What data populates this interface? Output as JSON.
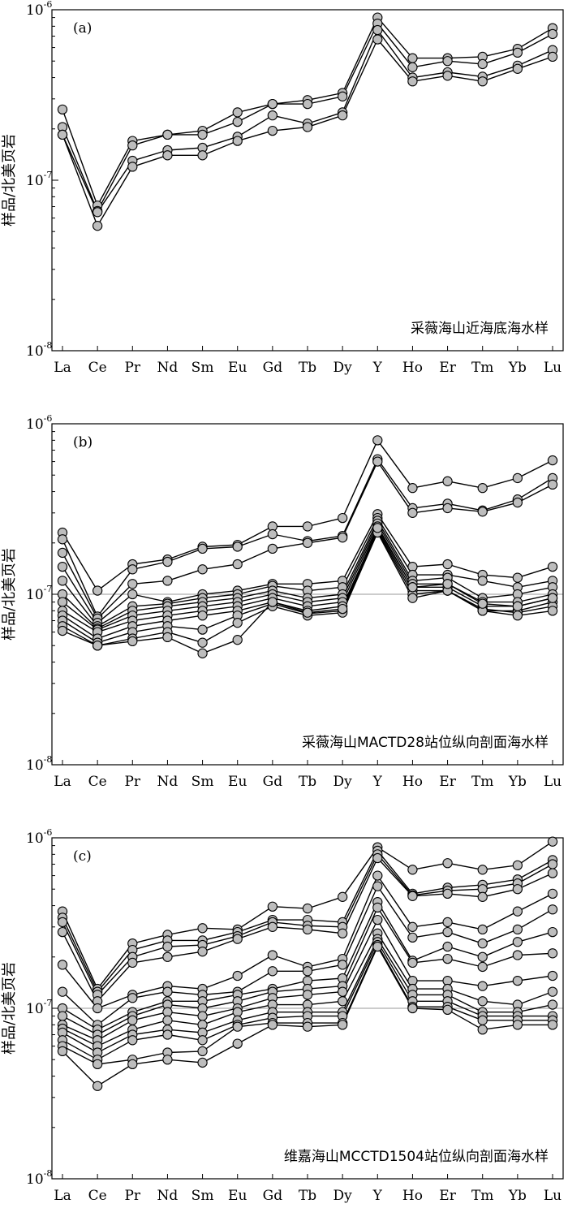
{
  "chart_data": [
    {
      "type": "line",
      "panel_label": "(a)",
      "caption": "采薇海山近海底海水样",
      "ylabel": "样品/北美页岩",
      "yscale": "log",
      "ylim": [
        1e-08,
        1e-06
      ],
      "yticks": [
        {
          "base": "10",
          "exp": "-8",
          "value": 1e-08
        },
        {
          "base": "10",
          "exp": "-7",
          "value": 1e-07
        },
        {
          "base": "10",
          "exp": "-6",
          "value": 1e-06
        }
      ],
      "reference_line": null,
      "categories": [
        "La",
        "Ce",
        "Pr",
        "Nd",
        "Sm",
        "Eu",
        "Gd",
        "Tb",
        "Dy",
        "Y",
        "Ho",
        "Er",
        "Tm",
        "Yb",
        "Lu"
      ],
      "series": [
        {
          "values": [
            2.6e-07,
            7.1e-08,
            1.7e-07,
            1.85e-07,
            1.95e-07,
            2.5e-07,
            2.8e-07,
            2.95e-07,
            3.25e-07,
            9e-07,
            5.2e-07,
            5.2e-07,
            5.3e-07,
            5.9e-07,
            7.8e-07
          ]
        },
        {
          "values": [
            2.05e-07,
            6.6e-08,
            1.6e-07,
            1.85e-07,
            1.85e-07,
            2.2e-07,
            2.8e-07,
            2.8e-07,
            3.1e-07,
            8.3e-07,
            4.6e-07,
            5e-07,
            4.8e-07,
            5.6e-07,
            7.2e-07
          ]
        },
        {
          "values": [
            1.85e-07,
            6.5e-08,
            1.3e-07,
            1.5e-07,
            1.55e-07,
            1.8e-07,
            2.4e-07,
            2.15e-07,
            2.5e-07,
            7.6e-07,
            4e-07,
            4.3e-07,
            4.05e-07,
            4.7e-07,
            5.8e-07
          ]
        },
        {
          "values": [
            1.85e-07,
            5.4e-08,
            1.2e-07,
            1.4e-07,
            1.4e-07,
            1.7e-07,
            1.95e-07,
            2.05e-07,
            2.4e-07,
            6.7e-07,
            3.8e-07,
            4.1e-07,
            3.8e-07,
            4.5e-07,
            5.3e-07
          ]
        }
      ]
    },
    {
      "type": "line",
      "panel_label": "(b)",
      "caption": "采薇海山MACTD28站位纵向剖面海水样",
      "ylabel": "样品/北美页岩",
      "yscale": "log",
      "ylim": [
        1e-08,
        1e-06
      ],
      "yticks": [
        {
          "base": "10",
          "exp": "-8",
          "value": 1e-08
        },
        {
          "base": "10",
          "exp": "-7",
          "value": 1e-07
        },
        {
          "base": "10",
          "exp": "-6",
          "value": 1e-06
        }
      ],
      "reference_line": 1e-07,
      "categories": [
        "La",
        "Ce",
        "Pr",
        "Nd",
        "Sm",
        "Eu",
        "Gd",
        "Tb",
        "Dy",
        "Y",
        "Ho",
        "Er",
        "Tm",
        "Yb",
        "Lu"
      ],
      "series": [
        {
          "values": [
            2.3e-07,
            1.05e-07,
            1.5e-07,
            1.6e-07,
            1.9e-07,
            1.95e-07,
            2.5e-07,
            2.5e-07,
            2.8e-07,
            8e-07,
            4.2e-07,
            4.6e-07,
            4.2e-07,
            4.8e-07,
            6.1e-07
          ]
        },
        {
          "values": [
            2.1e-07,
            7.4e-08,
            1.4e-07,
            1.55e-07,
            1.85e-07,
            1.9e-07,
            2.25e-07,
            2.05e-07,
            2.2e-07,
            6.2e-07,
            3.2e-07,
            3.4e-07,
            3.1e-07,
            3.6e-07,
            4.8e-07
          ]
        },
        {
          "values": [
            1.75e-07,
            7.2e-08,
            1.15e-07,
            1.2e-07,
            1.4e-07,
            1.5e-07,
            1.85e-07,
            2e-07,
            2.15e-07,
            6e-07,
            3e-07,
            3.2e-07,
            3.05e-07,
            3.45e-07,
            4.4e-07
          ]
        },
        {
          "values": [
            1.45e-07,
            6.8e-08,
            1e-07,
            9e-08,
            1e-07,
            1.05e-07,
            1.15e-07,
            1.15e-07,
            1.2e-07,
            2.95e-07,
            1.45e-07,
            1.5e-07,
            1.3e-07,
            1.25e-07,
            1.45e-07
          ]
        },
        {
          "values": [
            1.2e-07,
            6.5e-08,
            8.5e-08,
            8.8e-08,
            9.5e-08,
            1e-07,
            1.12e-07,
            1.05e-07,
            1.1e-07,
            2.8e-07,
            1.3e-07,
            1.3e-07,
            1.2e-07,
            1.1e-07,
            1.2e-07
          ]
        },
        {
          "values": [
            1e-07,
            6.3e-08,
            8e-08,
            8.5e-08,
            9e-08,
            9.5e-08,
            1.05e-07,
            9.5e-08,
            1e-07,
            2.7e-07,
            1.2e-07,
            1.25e-07,
            9.5e-08,
            1e-07,
            1.1e-07
          ]
        },
        {
          "values": [
            9e-08,
            6.2e-08,
            7.5e-08,
            8e-08,
            8.5e-08,
            9e-08,
            1e-07,
            9e-08,
            9.5e-08,
            2.6e-07,
            1.15e-07,
            1.15e-07,
            9e-08,
            9e-08,
            1e-07
          ]
        },
        {
          "values": [
            8e-08,
            6e-08,
            7e-08,
            7.5e-08,
            8e-08,
            8.5e-08,
            9.5e-08,
            8.5e-08,
            9e-08,
            2.5e-07,
            1.1e-07,
            1.1e-07,
            8.5e-08,
            8.5e-08,
            9.5e-08
          ]
        },
        {
          "values": [
            7.5e-08,
            5.5e-08,
            6.5e-08,
            7e-08,
            7.5e-08,
            8e-08,
            9e-08,
            8e-08,
            8.5e-08,
            2.4e-07,
            1.05e-07,
            1.05e-07,
            8e-08,
            8e-08,
            9e-08
          ]
        },
        {
          "values": [
            7e-08,
            5.2e-08,
            6e-08,
            6.5e-08,
            6.2e-08,
            7.5e-08,
            8.8e-08,
            7.7e-08,
            8e-08,
            2.35e-07,
            1e-07,
            1.05e-07,
            8.2e-08,
            7.8e-08,
            8.5e-08
          ]
        },
        {
          "values": [
            6.5e-08,
            5e-08,
            5.5e-08,
            6e-08,
            5.2e-08,
            6.8e-08,
            8.5e-08,
            7.5e-08,
            7.8e-08,
            2.3e-07,
            9.5e-08,
            1.05e-07,
            8e-08,
            7.5e-08,
            8e-08
          ]
        },
        {
          "values": [
            6.1e-08,
            5e-08,
            5.3e-08,
            5.6e-08,
            4.5e-08,
            5.4e-08,
            9e-08,
            7.8e-08,
            8.2e-08,
            2.45e-07,
            1.1e-07,
            1.15e-07,
            8.8e-08,
            8.5e-08,
            9.5e-08
          ]
        }
      ]
    },
    {
      "type": "line",
      "panel_label": "(c)",
      "caption": "维嘉海山MCCTD1504站位纵向剖面海水样",
      "ylabel": "样品/北美页岩",
      "yscale": "log",
      "ylim": [
        1e-08,
        1e-06
      ],
      "yticks": [
        {
          "base": "10",
          "exp": "-8",
          "value": 1e-08
        },
        {
          "base": "10",
          "exp": "-7",
          "value": 1e-07
        },
        {
          "base": "10",
          "exp": "-6",
          "value": 1e-06
        }
      ],
      "reference_line": 1e-07,
      "categories": [
        "La",
        "Ce",
        "Pr",
        "Nd",
        "Sm",
        "Eu",
        "Gd",
        "Tb",
        "Dy",
        "Y",
        "Ho",
        "Er",
        "Tm",
        "Yb",
        "Lu"
      ],
      "series": [
        {
          "values": [
            3.7e-07,
            1.3e-07,
            2.4e-07,
            2.7e-07,
            2.95e-07,
            2.9e-07,
            3.95e-07,
            3.85e-07,
            4.5e-07,
            8.8e-07,
            6.5e-07,
            7.1e-07,
            6.5e-07,
            6.9e-07,
            9.5e-07
          ]
        },
        {
          "values": [
            3.4e-07,
            1.25e-07,
            2.2e-07,
            2.5e-07,
            2.5e-07,
            2.8e-07,
            3.3e-07,
            3.3e-07,
            3.2e-07,
            8.4e-07,
            4.7e-07,
            5.1e-07,
            5.3e-07,
            5.7e-07,
            7.4e-07
          ]
        },
        {
          "values": [
            3.2e-07,
            1.2e-07,
            2e-07,
            2.3e-07,
            2.35e-07,
            2.65e-07,
            3.2e-07,
            3.05e-07,
            3e-07,
            8e-07,
            4.6e-07,
            4.9e-07,
            5e-07,
            5.4e-07,
            7e-07
          ]
        },
        {
          "values": [
            2.8e-07,
            1.1e-07,
            1.85e-07,
            2e-07,
            2.15e-07,
            2.55e-07,
            3e-07,
            2.9e-07,
            2.75e-07,
            7.6e-07,
            4.55e-07,
            4.7e-07,
            4.5e-07,
            5e-07,
            6.2e-07
          ]
        },
        {
          "values": [
            1.8e-07,
            1e-07,
            1.2e-07,
            1.35e-07,
            1.3e-07,
            1.55e-07,
            2.05e-07,
            1.75e-07,
            1.95e-07,
            6e-07,
            3e-07,
            3.2e-07,
            2.9e-07,
            3.7e-07,
            4.7e-07
          ]
        },
        {
          "values": [
            1.25e-07,
            8e-08,
            1.15e-07,
            1.25e-07,
            1.2e-07,
            1.25e-07,
            1.65e-07,
            1.65e-07,
            1.8e-07,
            5.2e-07,
            2.6e-07,
            2.8e-07,
            2.4e-07,
            2.9e-07,
            3.8e-07
          ]
        },
        {
          "values": [
            1e-07,
            7.5e-08,
            9.5e-08,
            1.1e-07,
            1.1e-07,
            1.2e-07,
            1.3e-07,
            1.45e-07,
            1.5e-07,
            4.2e-07,
            1.9e-07,
            2.3e-07,
            2e-07,
            2.45e-07,
            2.8e-07
          ]
        },
        {
          "values": [
            9e-08,
            7e-08,
            9e-08,
            1.05e-07,
            1e-07,
            1.1e-07,
            1.25e-07,
            1.3e-07,
            1.35e-07,
            3.9e-07,
            1.85e-07,
            1.95e-07,
            1.75e-07,
            2.05e-07,
            2.1e-07
          ]
        },
        {
          "values": [
            8e-08,
            6.5e-08,
            8.5e-08,
            9.5e-08,
            9e-08,
            1e-07,
            1.15e-07,
            1.2e-07,
            1.25e-07,
            3.3e-07,
            1.45e-07,
            1.45e-07,
            1.35e-07,
            1.45e-07,
            1.55e-07
          ]
        },
        {
          "values": [
            7.6e-08,
            6e-08,
            7.5e-08,
            8.5e-08,
            8e-08,
            9.5e-08,
            1.05e-07,
            1.05e-07,
            1.1e-07,
            2.75e-07,
            1.3e-07,
            1.3e-07,
            1.1e-07,
            1.05e-07,
            1.25e-07
          ]
        },
        {
          "values": [
            7.2e-08,
            5.5e-08,
            7e-08,
            7.5e-08,
            7.2e-08,
            8.5e-08,
            9.5e-08,
            9.5e-08,
            9.5e-08,
            2.55e-07,
            1.2e-07,
            1.2e-07,
            9.5e-08,
            9.5e-08,
            1.05e-07
          ]
        },
        {
          "values": [
            6.5e-08,
            5e-08,
            6.5e-08,
            7e-08,
            6.5e-08,
            8e-08,
            8.8e-08,
            9e-08,
            9e-08,
            2.45e-07,
            1.1e-07,
            1.1e-07,
            9e-08,
            9e-08,
            9e-08
          ]
        },
        {
          "values": [
            6e-08,
            4.7e-08,
            5e-08,
            5.5e-08,
            5.6e-08,
            7.8e-08,
            8.2e-08,
            8.2e-08,
            8.2e-08,
            2.35e-07,
            1.02e-07,
            1.02e-07,
            8.5e-08,
            8.5e-08,
            8.5e-08
          ]
        },
        {
          "values": [
            5.6e-08,
            3.5e-08,
            4.7e-08,
            5e-08,
            4.8e-08,
            6.2e-08,
            8e-08,
            7.8e-08,
            8e-08,
            2.3e-07,
            1e-07,
            9.8e-08,
            7.5e-08,
            8e-08,
            8e-08
          ]
        }
      ]
    }
  ]
}
